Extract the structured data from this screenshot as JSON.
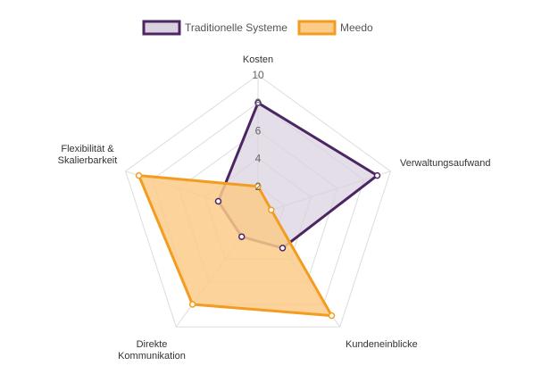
{
  "chart_data": {
    "type": "radar",
    "categories": [
      "Kosten",
      "Verwaltungsaufwand",
      "Kundeneinblicke",
      "Direkte Kommunikation",
      "Flexibilität & Skalierbarkeit"
    ],
    "category_lines": [
      [
        "Kosten"
      ],
      [
        "Verwaltungsaufwand"
      ],
      [
        "Kundeneinblicke"
      ],
      [
        "Direkte",
        "Kommunikation"
      ],
      [
        "Flexibilität &",
        "Skalierbarkeit"
      ]
    ],
    "r_range": [
      0,
      10
    ],
    "ticks": [
      "2",
      "4",
      "6",
      "8",
      "10"
    ],
    "tick_values": [
      2,
      4,
      6,
      8,
      10
    ],
    "grid": true,
    "legend_position": "top",
    "series": [
      {
        "name": "Traditionelle Systeme",
        "values": [
          8,
          9,
          3,
          2,
          3
        ],
        "stroke": "#4b2663",
        "fill": "#d9d0e0"
      },
      {
        "name": "Meedo",
        "values": [
          2,
          1,
          9,
          8,
          9
        ],
        "stroke": "#f39c1f",
        "fill": "#fbcb8a"
      }
    ]
  }
}
